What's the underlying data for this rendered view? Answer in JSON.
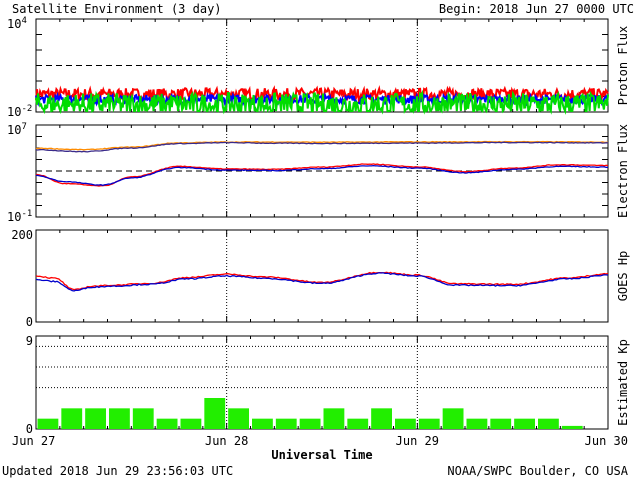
{
  "header": {
    "title": "Satellite Environment (3 day)",
    "begin": "Begin:  2018 Jun 27 0000 UTC"
  },
  "footer": {
    "updated": "Updated 2018 Jun 29 23:56:03 UTC",
    "credit": "NOAA/SWPC Boulder, CO USA"
  },
  "chart_data": [
    {
      "type": "line",
      "panel": "proton",
      "ylabel": "Proton Flux",
      "yscale": "log",
      "ylim": [
        0.01,
        10000
      ],
      "ytick_labels": [
        "10^4",
        "10^-2"
      ],
      "reference_line": 10,
      "series": [
        {
          "color": "#ff0000",
          "level": 0.14,
          "jitter": 0.06
        },
        {
          "color": "#0000ff",
          "level": 0.065,
          "jitter": 0.02
        },
        {
          "color": "#00dd00",
          "level": 0.03,
          "jitter": 0.025
        }
      ]
    },
    {
      "type": "line",
      "panel": "electron",
      "ylabel": "Electron Flux",
      "yscale": "log",
      "ylim": [
        0.1,
        10000000
      ],
      "ytick_labels": [
        "10^7",
        "10^-1"
      ],
      "reference_line": 1000,
      "series": [
        {
          "color": "#ff8c00",
          "x": [
            0,
            0.25,
            0.5,
            0.75,
            1,
            1.25,
            1.5,
            2,
            2.5,
            3
          ],
          "y": [
            95000,
            72000,
            120000,
            280000,
            330000,
            330000,
            320000,
            340000,
            350000,
            330000
          ]
        },
        {
          "color": "#3a2a8a",
          "x": [
            0,
            0.25,
            0.5,
            0.75,
            1,
            1.25,
            1.5,
            2,
            2.5,
            3
          ],
          "y": [
            70000,
            48000,
            100000,
            240000,
            290000,
            260000,
            250000,
            270000,
            300000,
            280000
          ]
        },
        {
          "color": "#ff0000",
          "x": [
            0,
            0.15,
            0.35,
            0.5,
            0.75,
            1,
            1.25,
            1.5,
            1.75,
            2,
            2.25,
            2.5,
            2.75,
            3
          ],
          "y": [
            500,
            80,
            50,
            300,
            2500,
            1500,
            1400,
            2200,
            4000,
            2300,
            900,
            1800,
            3500,
            3000
          ]
        },
        {
          "color": "#0000cc",
          "x": [
            0,
            0.15,
            0.35,
            0.5,
            0.75,
            1,
            1.25,
            1.5,
            1.75,
            2,
            2.25,
            2.5,
            2.75,
            3
          ],
          "y": [
            400,
            120,
            60,
            250,
            2000,
            1200,
            1100,
            1600,
            2800,
            1800,
            700,
            1400,
            2500,
            2200
          ]
        }
      ]
    },
    {
      "type": "line",
      "panel": "hp",
      "ylabel": "GOES Hp",
      "ylim": [
        0,
        200
      ],
      "ytick_labels": [
        "200",
        "0"
      ],
      "series": [
        {
          "color": "#ff0000",
          "x": [
            0,
            0.1,
            0.2,
            0.3,
            0.4,
            0.6,
            0.8,
            1.0,
            1.2,
            1.5,
            1.8,
            2.0,
            2.2,
            2.5,
            2.8,
            3
          ],
          "y": [
            100,
            95,
            70,
            78,
            80,
            84,
            97,
            104,
            98,
            86,
            108,
            102,
            83,
            82,
            96,
            105
          ]
        },
        {
          "color": "#0000cc",
          "x": [
            0,
            0.1,
            0.2,
            0.3,
            0.4,
            0.6,
            0.8,
            1.0,
            1.2,
            1.5,
            1.8,
            2.0,
            2.2,
            2.5,
            2.8,
            3
          ],
          "y": [
            92,
            88,
            68,
            76,
            78,
            82,
            94,
            100,
            95,
            84,
            106,
            100,
            80,
            79,
            94,
            102
          ]
        }
      ]
    },
    {
      "type": "bar",
      "panel": "kp",
      "ylabel": "Estimated Kp",
      "ylim": [
        0,
        9
      ],
      "ytick_labels": [
        "9",
        "0"
      ],
      "dotted_levels": [
        4,
        6,
        8
      ],
      "values": [
        1,
        2,
        2,
        2,
        2,
        1,
        1,
        3,
        2,
        1,
        1,
        1,
        2,
        1,
        2,
        1,
        1,
        2,
        1,
        1,
        1,
        1,
        0.3,
        0
      ],
      "bar_color": "#22ee00"
    }
  ],
  "x_axis": {
    "title": "Universal Time",
    "tick_labels": [
      "Jun 27",
      "Jun 28",
      "Jun 29",
      "Jun 30"
    ]
  }
}
